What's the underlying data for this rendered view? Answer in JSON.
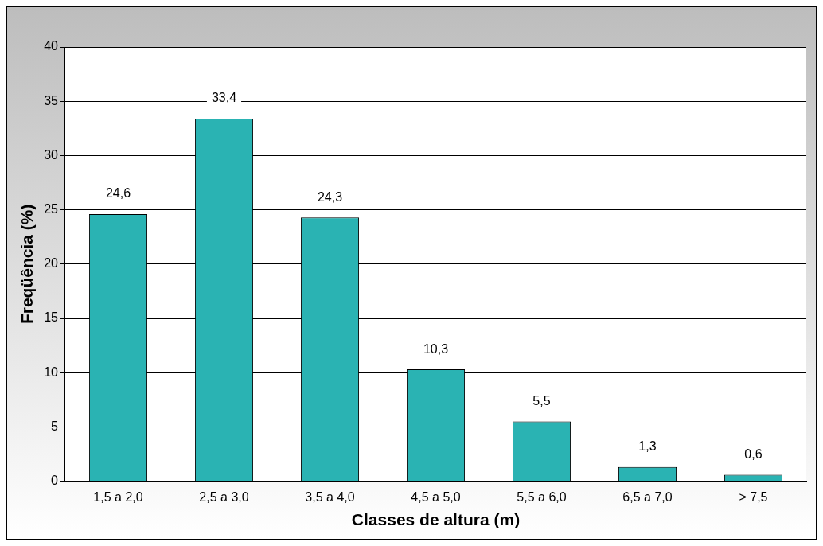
{
  "chart_data": {
    "type": "bar",
    "xlabel": "Classes de altura (m)",
    "ylabel": "Freqüência (%)",
    "categories": [
      "1,5 a 2,0",
      "2,5 a 3,0",
      "3,5 a 4,0",
      "4,5 a 5,0",
      "5,5 a 6,0",
      "6,5 a 7,0",
      "> 7,5"
    ],
    "values": [
      24.6,
      33.4,
      24.3,
      10.3,
      5.5,
      1.3,
      0.6
    ],
    "value_labels": [
      "24,6",
      "33,4",
      "24,3",
      "10,3",
      "5,5",
      "1,3",
      "0,6"
    ],
    "color": "#2ab3b3",
    "ylim": [
      0,
      40
    ],
    "yticks": [
      0,
      5,
      10,
      15,
      20,
      25,
      30,
      35,
      40
    ],
    "grid": "y",
    "legend": false
  }
}
